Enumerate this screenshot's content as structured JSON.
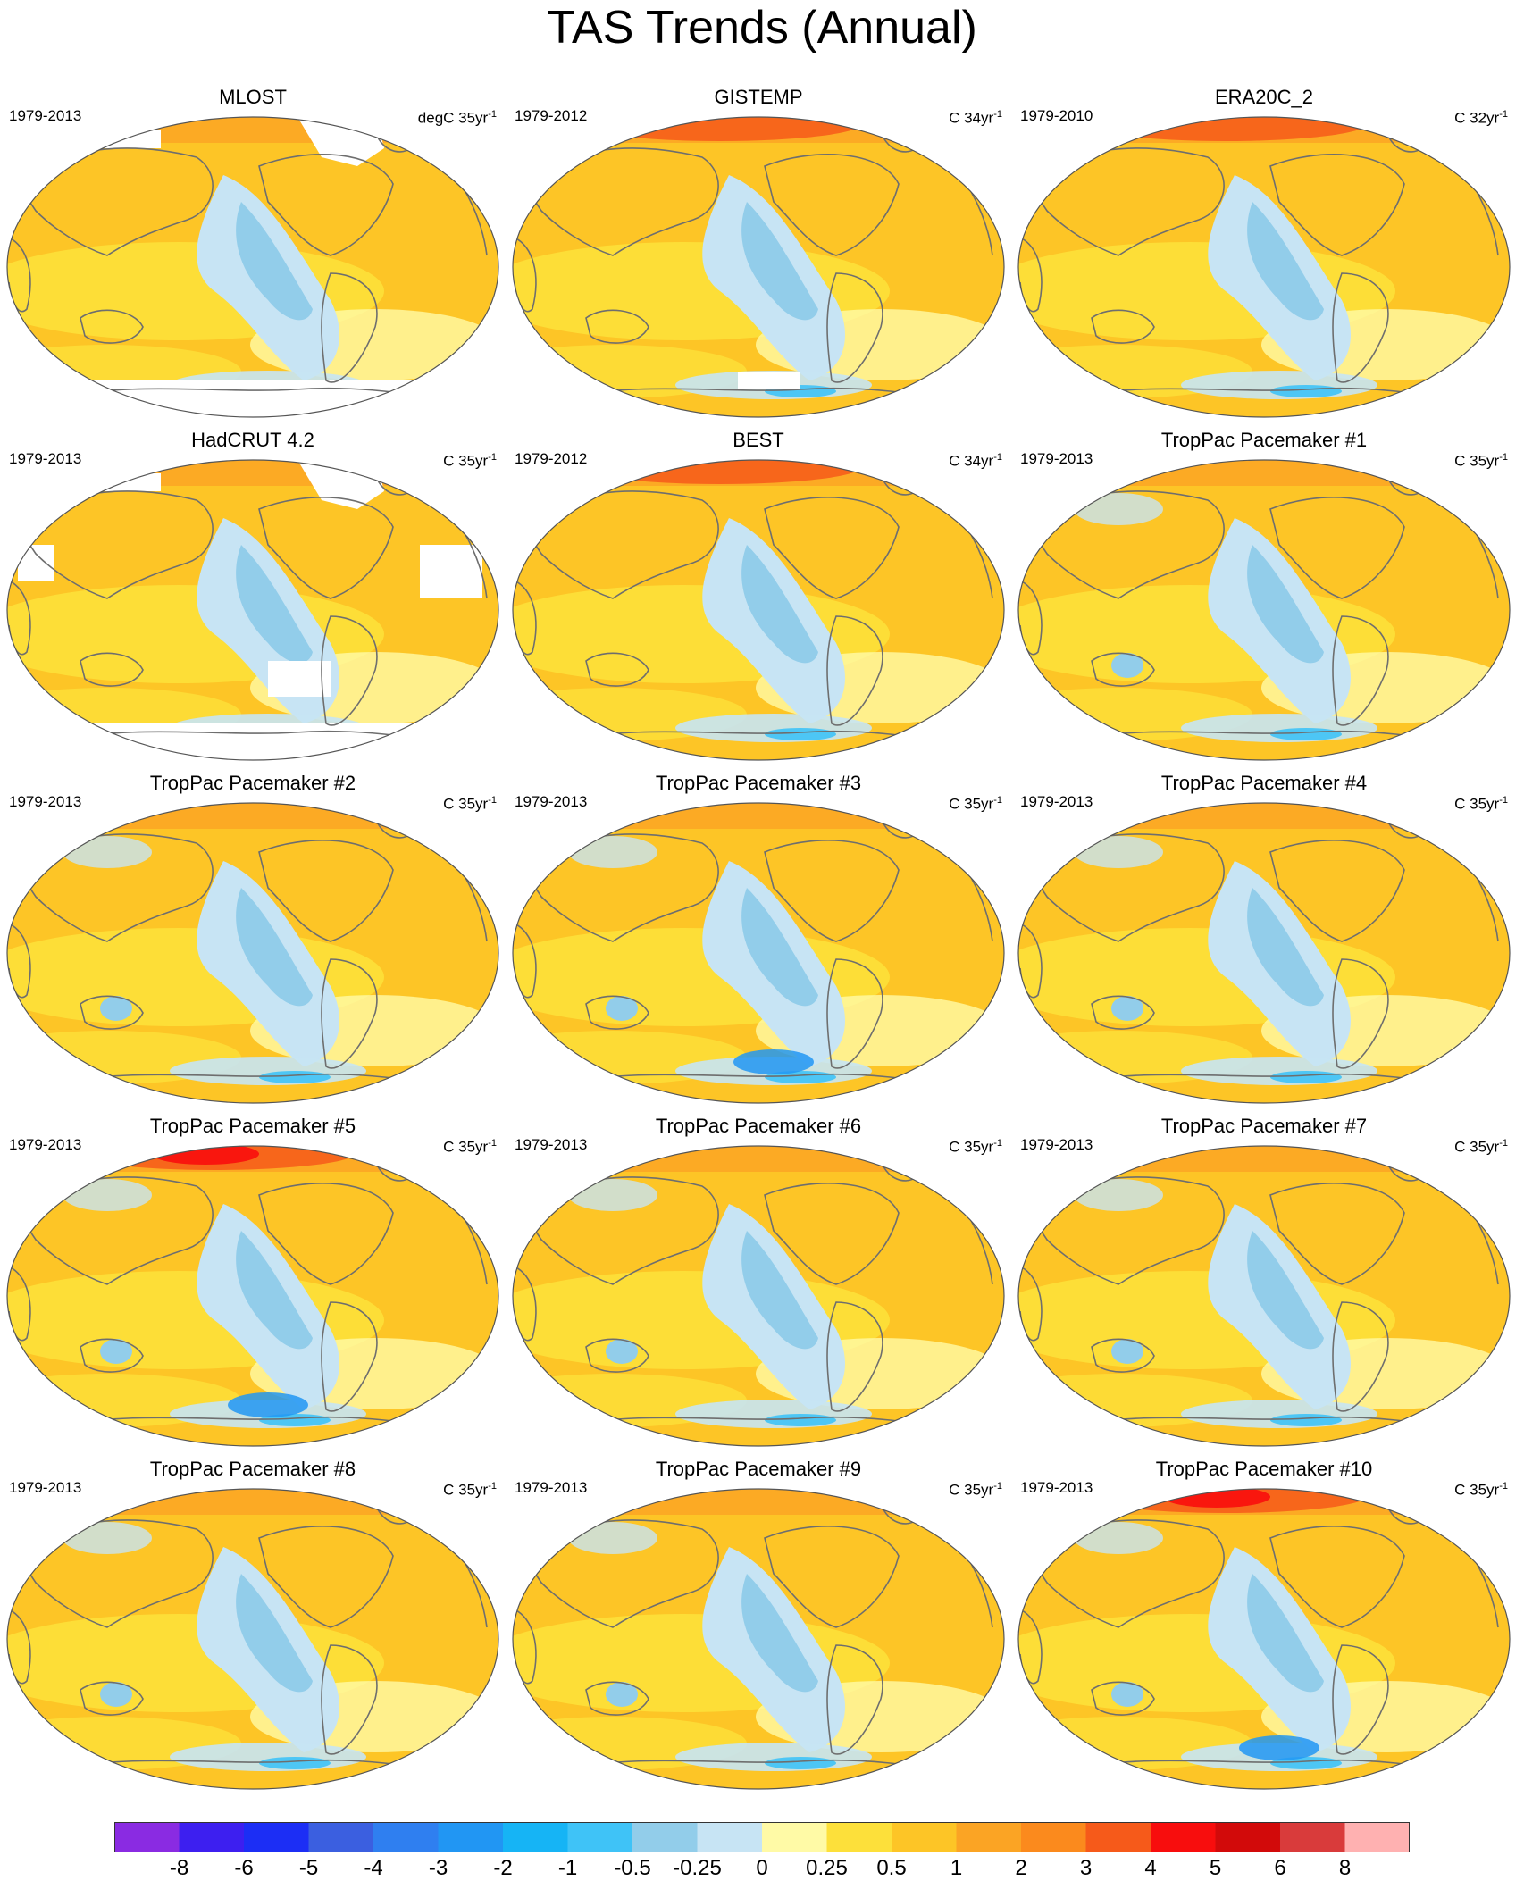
{
  "title": "TAS Trends (Annual)",
  "colors": {
    "land_outline": "#6e6e6e",
    "frame": "#555555",
    "missing": "#ffffff"
  },
  "panels": [
    {
      "name": "MLOST",
      "period": "1979-2013",
      "units": "degC 35yr",
      "units_exp": "-1",
      "masked": "land-ice-and-south"
    },
    {
      "name": "GISTEMP",
      "period": "1979-2012",
      "units": "C 34yr",
      "units_exp": "-1",
      "masked": "south-patch"
    },
    {
      "name": "ERA20C_2",
      "period": "1979-2010",
      "units": "C 32yr",
      "units_exp": "-1",
      "masked": "none"
    },
    {
      "name": "HadCRUT 4.2",
      "period": "1979-2013",
      "units": "C 35yr",
      "units_exp": "-1",
      "masked": "land-ice-and-south"
    },
    {
      "name": "BEST",
      "period": "1979-2012",
      "units": "C 34yr",
      "units_exp": "-1",
      "masked": "none"
    },
    {
      "name": "TropPac Pacemaker #1",
      "period": "1979-2013",
      "units": "C 35yr",
      "units_exp": "-1",
      "masked": "none"
    },
    {
      "name": "TropPac Pacemaker #2",
      "period": "1979-2013",
      "units": "C 35yr",
      "units_exp": "-1",
      "masked": "none"
    },
    {
      "name": "TropPac Pacemaker #3",
      "period": "1979-2013",
      "units": "C 35yr",
      "units_exp": "-1",
      "masked": "none"
    },
    {
      "name": "TropPac Pacemaker #4",
      "period": "1979-2013",
      "units": "C 35yr",
      "units_exp": "-1",
      "masked": "none"
    },
    {
      "name": "TropPac Pacemaker #5",
      "period": "1979-2013",
      "units": "C 35yr",
      "units_exp": "-1",
      "masked": "none"
    },
    {
      "name": "TropPac Pacemaker #6",
      "period": "1979-2013",
      "units": "C 35yr",
      "units_exp": "-1",
      "masked": "none"
    },
    {
      "name": "TropPac Pacemaker #7",
      "period": "1979-2013",
      "units": "C 35yr",
      "units_exp": "-1",
      "masked": "none"
    },
    {
      "name": "TropPac Pacemaker #8",
      "period": "1979-2013",
      "units": "C 35yr",
      "units_exp": "-1",
      "masked": "none"
    },
    {
      "name": "TropPac Pacemaker #9",
      "period": "1979-2013",
      "units": "C 35yr",
      "units_exp": "-1",
      "masked": "none"
    },
    {
      "name": "TropPac Pacemaker #10",
      "period": "1979-2013",
      "units": "C 35yr",
      "units_exp": "-1",
      "masked": "none"
    }
  ],
  "colorbar": {
    "labels": [
      "-8",
      "-6",
      "-5",
      "-4",
      "-3",
      "-2",
      "-1",
      "-0.5",
      "-0.25",
      "0",
      "0.25",
      "0.5",
      "1",
      "2",
      "3",
      "4",
      "5",
      "6",
      "8"
    ],
    "colors": [
      "#8a2be2",
      "#3d1ff0",
      "#1c2ef5",
      "#3b5fe0",
      "#2f7ff0",
      "#2196f3",
      "#16b4f5",
      "#3fc3f7",
      "#92cdea",
      "#c7e4f4",
      "#fffaa6",
      "#fde03a",
      "#fdc526",
      "#fba424",
      "#fb8a1d",
      "#f65a1a",
      "#f80d0d",
      "#d20a0a",
      "#d93b3b",
      "#ffb1b1"
    ]
  }
}
